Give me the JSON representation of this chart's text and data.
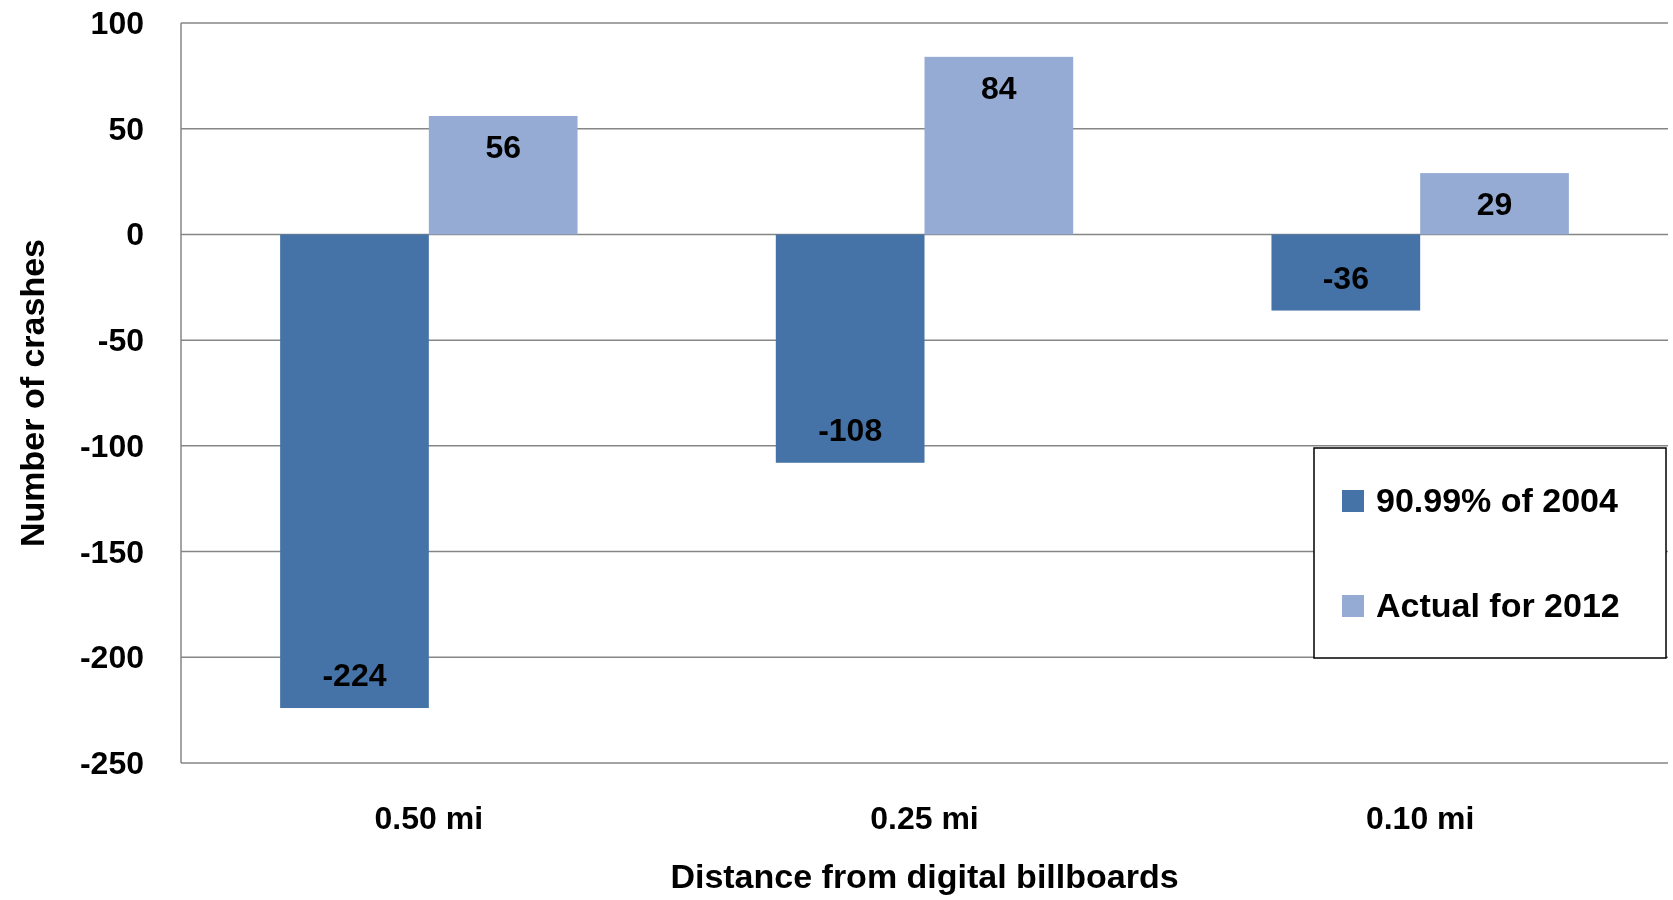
{
  "chart_data": {
    "type": "bar",
    "xlabel": "Distance from digital billboards",
    "ylabel": "Number of crashes",
    "categories": [
      "0.50 mi",
      "0.25 mi",
      "0.10 mi"
    ],
    "series": [
      {
        "name": "90.99% of 2004",
        "color": "#4573a7",
        "values": [
          -224,
          -108,
          -36
        ]
      },
      {
        "name": "Actual for 2012",
        "color": "#95abd3",
        "values": [
          56,
          84,
          29
        ]
      }
    ],
    "ylim": [
      -250,
      100
    ],
    "yticks": [
      -250,
      -200,
      -150,
      -100,
      -50,
      0,
      50,
      100
    ],
    "grid": "y",
    "legend": "right",
    "data_labels": true
  }
}
